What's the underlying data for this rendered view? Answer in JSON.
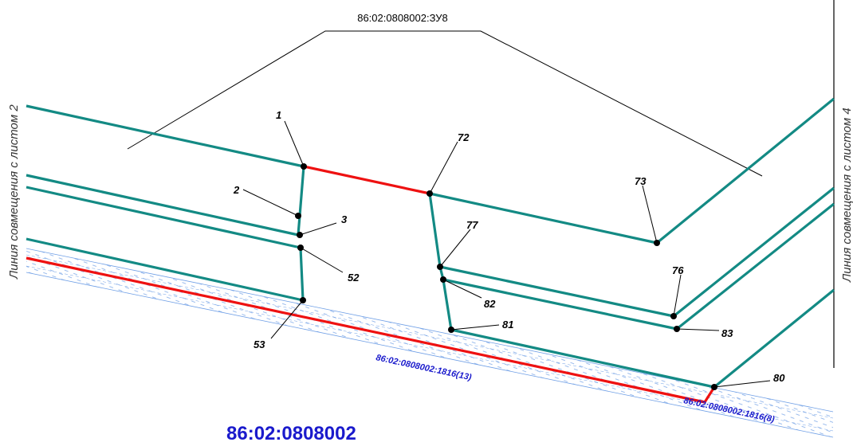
{
  "parcel_label": "86:02:0808002:ЗУ8",
  "quarter_label": "86:02:0808002",
  "side_left": "Линия совмещения с листом 2",
  "side_right": "Линия совмещения с листом 4",
  "strip_labels": {
    "strip_13": "86:02:0808002:1816(13)",
    "strip_8": "86:02:0808002:1816(8)"
  },
  "points": {
    "p1": "1",
    "p2": "2",
    "p3": "3",
    "p52": "52",
    "p53": "53",
    "p72": "72",
    "p73": "73",
    "p77": "77",
    "p82": "82",
    "p81": "81",
    "p76": "76",
    "p83": "83",
    "p80": "80"
  },
  "colors": {
    "boundary": "#138a84",
    "red_line": "#ee1111",
    "hatch": "#6f9fe6",
    "labels_blue": "#1a1acc"
  }
}
